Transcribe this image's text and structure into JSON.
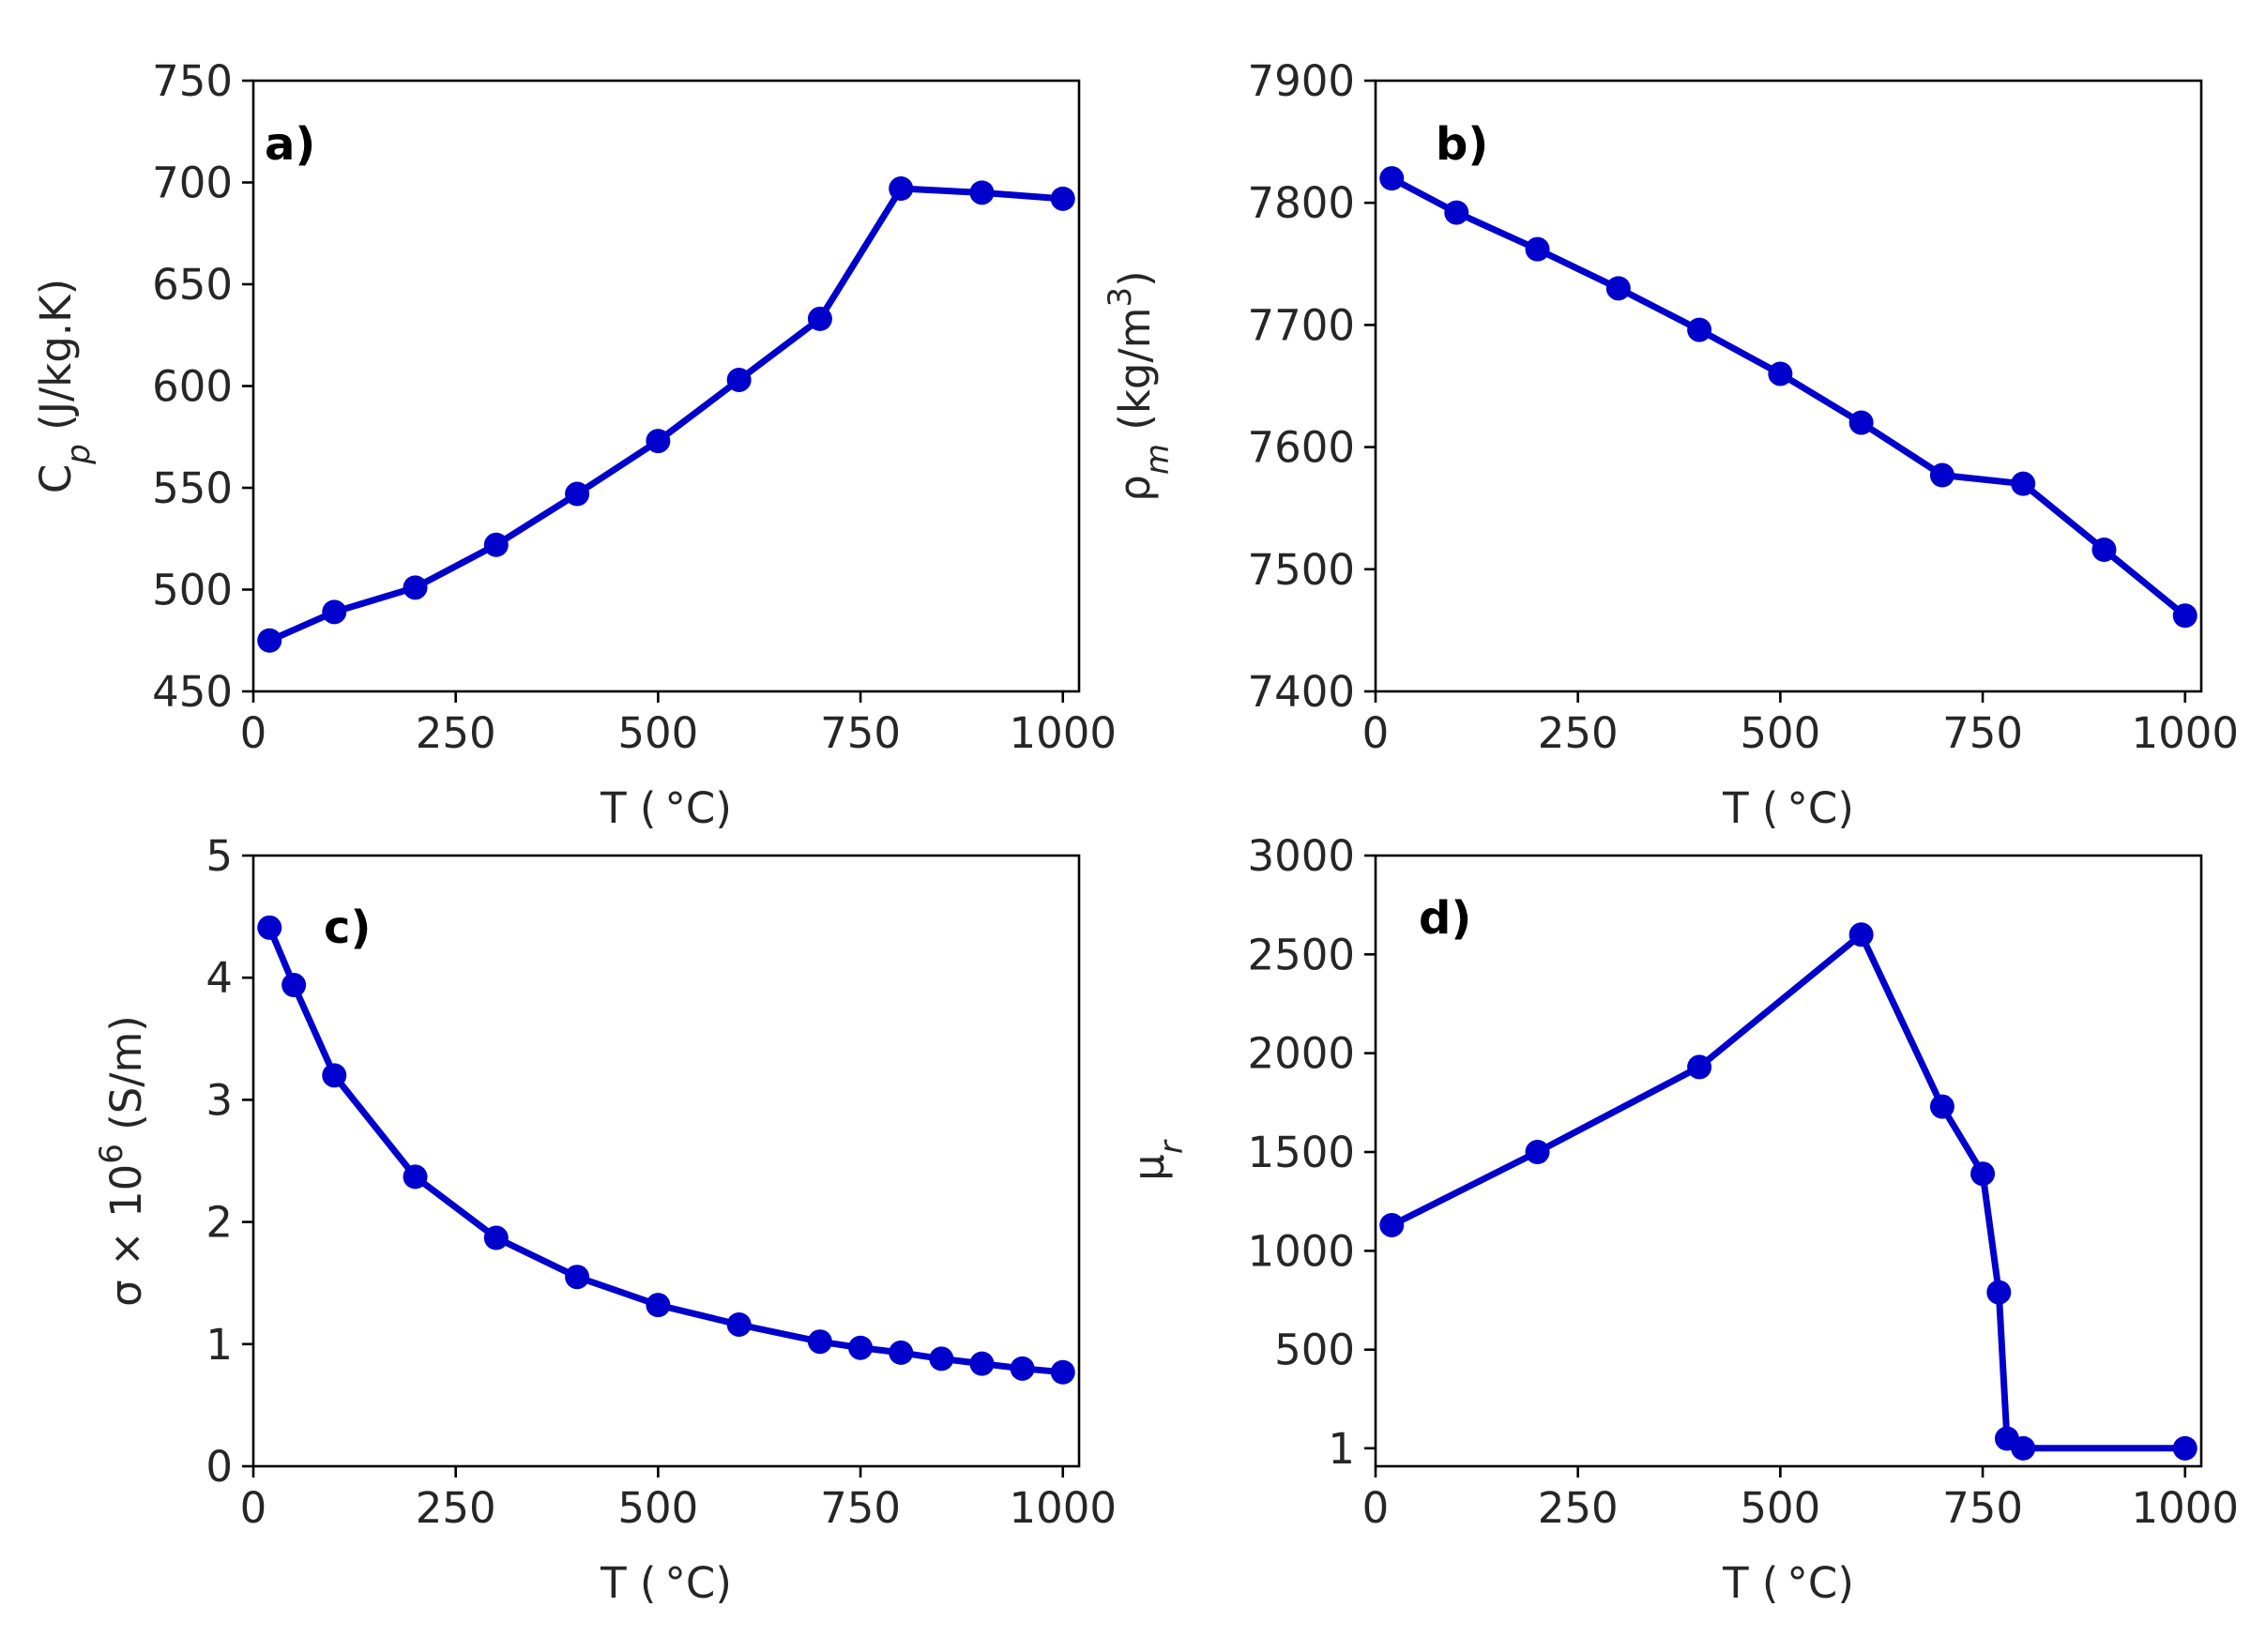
{
  "colors": {
    "series": "#0000cc"
  },
  "chart_data": [
    {
      "type": "line",
      "panel_label": "a)",
      "xlabel": "T ( °C)",
      "ylabel": "C_p (J/kg.K)",
      "xlim": [
        0,
        1020
      ],
      "ylim": [
        450,
        750
      ],
      "xticks": [
        0,
        250,
        500,
        750,
        1000
      ],
      "xtick_labels": [
        "0",
        "250",
        "500",
        "750",
        "1000"
      ],
      "yticks": [
        450,
        500,
        550,
        600,
        650,
        700,
        750
      ],
      "ytick_labels": [
        "450",
        "500",
        "550",
        "600",
        "650",
        "700",
        "750"
      ],
      "x": [
        20,
        100,
        200,
        300,
        400,
        500,
        600,
        700,
        800,
        900,
        1000
      ],
      "y": [
        475,
        489,
        501,
        522,
        547,
        573,
        603,
        633,
        697,
        695,
        692
      ]
    },
    {
      "type": "line",
      "panel_label": "b)",
      "xlabel": "T ( °C)",
      "ylabel": "ρ_m (kg/m^3)",
      "xlim": [
        0,
        1020
      ],
      "ylim": [
        7400,
        7900
      ],
      "xticks": [
        0,
        250,
        500,
        750,
        1000
      ],
      "xtick_labels": [
        "0",
        "250",
        "500",
        "750",
        "1000"
      ],
      "yticks": [
        7400,
        7500,
        7600,
        7700,
        7800,
        7900
      ],
      "ytick_labels": [
        "7400",
        "7500",
        "7600",
        "7700",
        "7800",
        "7900"
      ],
      "x": [
        20,
        100,
        200,
        300,
        400,
        500,
        600,
        700,
        800,
        900,
        1000
      ],
      "y": [
        7820,
        7792,
        7762,
        7730,
        7696,
        7660,
        7620,
        7577,
        7570,
        7516,
        7462
      ]
    },
    {
      "type": "line",
      "panel_label": "c)",
      "xlabel": "T ( °C)",
      "ylabel": "σ × 10^6 (S/m)",
      "xlim": [
        0,
        1020
      ],
      "ylim": [
        0,
        5
      ],
      "xticks": [
        0,
        250,
        500,
        750,
        1000
      ],
      "xtick_labels": [
        "0",
        "250",
        "500",
        "750",
        "1000"
      ],
      "yticks": [
        0,
        1,
        2,
        3,
        4,
        5
      ],
      "ytick_labels": [
        "0",
        "1",
        "2",
        "3",
        "4",
        "5"
      ],
      "x": [
        20,
        50,
        100,
        200,
        300,
        400,
        500,
        600,
        700,
        750,
        800,
        850,
        900,
        950,
        1000
      ],
      "y": [
        4.41,
        3.94,
        3.2,
        2.37,
        1.87,
        1.55,
        1.32,
        1.16,
        1.02,
        0.97,
        0.93,
        0.88,
        0.84,
        0.8,
        0.77
      ]
    },
    {
      "type": "line",
      "panel_label": "d)",
      "xlabel": "T ( °C)",
      "ylabel": "μ_r",
      "xlim": [
        0,
        1020
      ],
      "ylim": [
        -90,
        3000
      ],
      "xticks": [
        0,
        250,
        500,
        750,
        1000
      ],
      "xtick_labels": [
        "0",
        "250",
        "500",
        "750",
        "1000"
      ],
      "yticks": [
        1,
        500,
        1000,
        1500,
        2000,
        2500,
        3000
      ],
      "ytick_labels": [
        "1",
        "500",
        "1000",
        "1500",
        "2000",
        "2500",
        "3000"
      ],
      "x": [
        20,
        200,
        400,
        600,
        700,
        750,
        770,
        780,
        800,
        1000
      ],
      "y": [
        1130,
        1500,
        1930,
        2600,
        1730,
        1390,
        790,
        50,
        1,
        1
      ]
    }
  ]
}
